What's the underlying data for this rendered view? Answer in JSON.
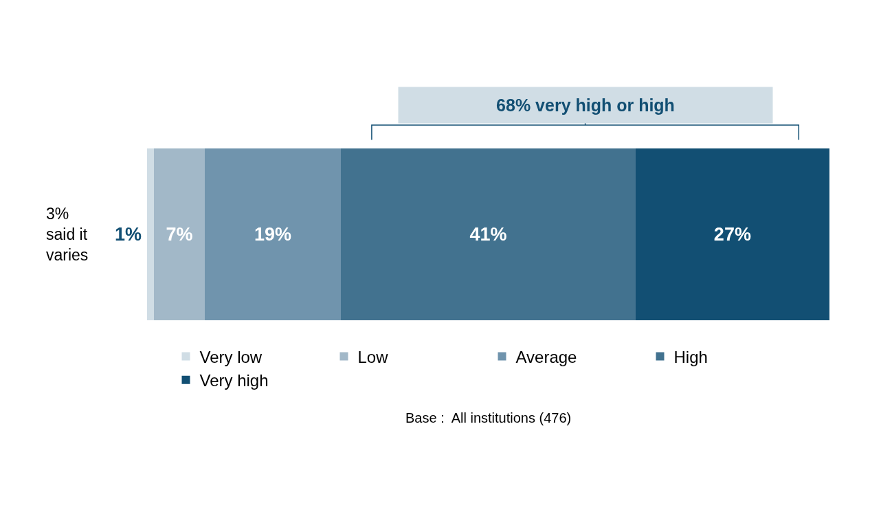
{
  "chart_data": {
    "type": "bar",
    "orientation": "horizontal",
    "stacked": true,
    "categories": [
      null
    ],
    "xlim": [
      0,
      95
    ],
    "legend": "bottom",
    "series": [
      {
        "name": "Very low",
        "color": "#d0dde5",
        "values": [
          1
        ],
        "value_labels": [
          "1%"
        ]
      },
      {
        "name": "Low",
        "color": "#a2b8c8",
        "values": [
          7
        ],
        "value_labels": [
          "7%"
        ]
      },
      {
        "name": "Average",
        "color": "#7094ad",
        "values": [
          19
        ],
        "value_labels": [
          "19%"
        ]
      },
      {
        "name": "High",
        "color": "#42728f",
        "values": [
          41
        ],
        "value_labels": [
          "41%"
        ]
      },
      {
        "name": "Very high",
        "color": "#124f73",
        "values": [
          27
        ],
        "value_labels": [
          "27%"
        ]
      }
    ],
    "annotations": [
      "68% very high or high",
      "3%\nsaid it\nvaries",
      "Base :  All institutions (476)"
    ]
  }
}
